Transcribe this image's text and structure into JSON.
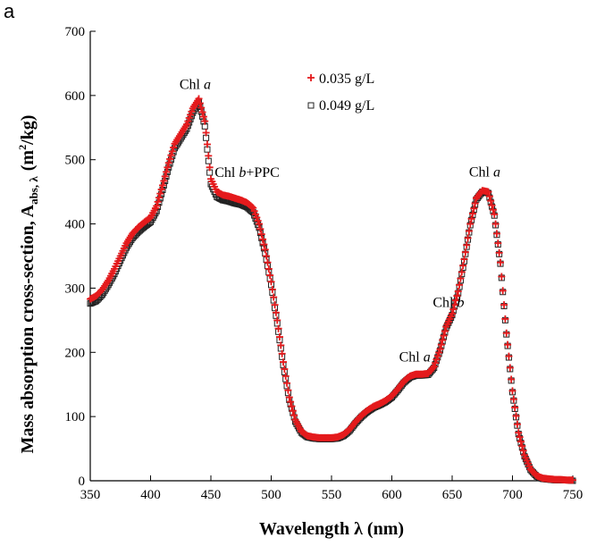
{
  "panel_label": "a",
  "chart_data": {
    "type": "scatter",
    "xlabel": "Wavelength λ (nm)",
    "ylabel_main": "Mass absorption cross-section, A",
    "ylabel_sub": "abs, λ",
    "ylabel_unit_prefix": "(m",
    "ylabel_unit_sup": "2",
    "ylabel_unit_suffix": "/kg)",
    "xlim": [
      350,
      750
    ],
    "ylim": [
      0,
      700
    ],
    "xticks": [
      350,
      400,
      450,
      500,
      550,
      600,
      650,
      700,
      750
    ],
    "yticks": [
      0,
      100,
      200,
      300,
      400,
      500,
      600,
      700
    ],
    "grid": false,
    "legend_position": "top-center",
    "colors": {
      "series1": "#e41a1c",
      "series2": "#222222"
    },
    "annotations": [
      {
        "pre": "Chl ",
        "ital": "a",
        "post": "",
        "x": 437,
        "y": 610
      },
      {
        "pre": "Chl ",
        "ital": "b",
        "post": "+PPC",
        "x": 480,
        "y": 473
      },
      {
        "pre": "Chl ",
        "ital": "a",
        "post": "",
        "x": 677,
        "y": 474
      },
      {
        "pre": "Chl ",
        "ital": "b",
        "post": "",
        "x": 647,
        "y": 271
      },
      {
        "pre": "Chl ",
        "ital": "a",
        "post": "",
        "x": 619,
        "y": 186
      }
    ],
    "series": [
      {
        "name": "0.035 g/L",
        "marker": "plus",
        "x": [
          350,
          355,
          360,
          365,
          370,
          375,
          380,
          385,
          390,
          395,
          400,
          405,
          410,
          415,
          420,
          425,
          430,
          435,
          440,
          445,
          450,
          455,
          460,
          465,
          470,
          475,
          480,
          485,
          490,
          495,
          500,
          505,
          510,
          515,
          520,
          525,
          530,
          535,
          540,
          545,
          550,
          555,
          560,
          565,
          570,
          575,
          580,
          585,
          590,
          595,
          600,
          605,
          610,
          615,
          620,
          625,
          630,
          635,
          640,
          645,
          650,
          655,
          660,
          665,
          670,
          675,
          680,
          685,
          690,
          695,
          700,
          705,
          710,
          715,
          720,
          725,
          730,
          735,
          740,
          745,
          750
        ],
        "y": [
          283,
          288,
          298,
          312,
          330,
          350,
          370,
          385,
          395,
          403,
          410,
          428,
          460,
          495,
          525,
          540,
          555,
          580,
          595,
          560,
          470,
          450,
          445,
          443,
          440,
          437,
          433,
          425,
          400,
          360,
          310,
          250,
          185,
          130,
          95,
          77,
          70,
          68,
          67,
          67,
          67,
          68,
          72,
          80,
          92,
          102,
          110,
          116,
          120,
          125,
          132,
          143,
          155,
          163,
          166,
          166,
          167,
          178,
          205,
          240,
          260,
          295,
          345,
          400,
          440,
          452,
          450,
          415,
          340,
          230,
          140,
          75,
          40,
          18,
          8,
          4,
          3,
          2,
          2,
          1,
          1
        ]
      },
      {
        "name": "0.049 g/L",
        "marker": "square",
        "x": [
          350,
          355,
          360,
          365,
          370,
          375,
          380,
          385,
          390,
          395,
          400,
          405,
          410,
          415,
          420,
          425,
          430,
          435,
          440,
          445,
          450,
          455,
          460,
          465,
          470,
          475,
          480,
          485,
          490,
          495,
          500,
          505,
          510,
          515,
          520,
          525,
          530,
          535,
          540,
          545,
          550,
          555,
          560,
          565,
          570,
          575,
          580,
          585,
          590,
          595,
          600,
          605,
          610,
          615,
          620,
          625,
          630,
          635,
          640,
          645,
          650,
          655,
          660,
          665,
          670,
          675,
          680,
          685,
          690,
          695,
          700,
          705,
          710,
          715,
          720,
          725,
          730,
          735,
          740,
          745,
          750
        ],
        "y": [
          276,
          280,
          290,
          305,
          322,
          343,
          363,
          378,
          388,
          396,
          403,
          420,
          453,
          488,
          518,
          533,
          548,
          573,
          590,
          552,
          462,
          442,
          437,
          435,
          432,
          430,
          426,
          418,
          394,
          354,
          305,
          245,
          180,
          126,
          92,
          75,
          68,
          66,
          65,
          65,
          65,
          66,
          70,
          78,
          90,
          100,
          108,
          114,
          118,
          123,
          130,
          141,
          153,
          161,
          164,
          164,
          165,
          176,
          203,
          238,
          258,
          292,
          342,
          398,
          438,
          450,
          448,
          413,
          338,
          228,
          138,
          73,
          38,
          17,
          7,
          3,
          2,
          1,
          1,
          1,
          0
        ]
      }
    ]
  }
}
